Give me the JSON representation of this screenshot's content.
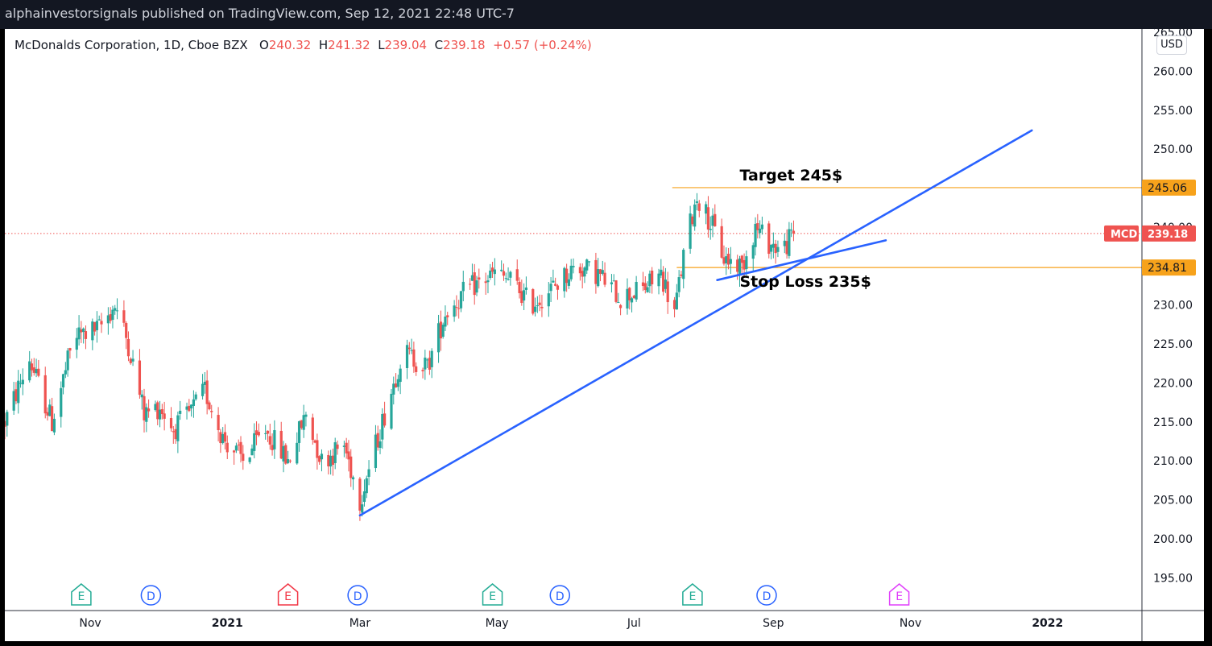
{
  "header": {
    "text": "alphainvestorsignals published on TradingView.com, Sep 12, 2021 22:48 UTC-7"
  },
  "legend": {
    "symbol": "McDonalds Corporation, 1D, Cboe BZX",
    "open_label": "O",
    "open": "240.32",
    "high_label": "H",
    "high": "241.32",
    "low_label": "L",
    "low": "239.04",
    "close_label": "C",
    "close": "239.18",
    "change": "+0.57 (+0.24%)"
  },
  "currency": "USD",
  "colors": {
    "up": "#26a69a",
    "down": "#ef5350",
    "trendline": "#2962ff",
    "level": "#f7a21b",
    "price_line": "#ef5350",
    "earnings": "#22ab94",
    "earnings_red": "#f23645",
    "earnings_future": "#e040fb",
    "dividend": "#2962ff"
  },
  "chart_data": {
    "type": "candlestick",
    "symbol": "MCD",
    "last_price": 239.18,
    "ylim": [
      191,
      265
    ],
    "y_ticks": [
      "195.00",
      "200.00",
      "205.00",
      "210.00",
      "215.00",
      "220.00",
      "225.00",
      "230.00",
      "235.00",
      "240.00",
      "245.00",
      "250.00",
      "255.00",
      "260.00",
      "265.00"
    ],
    "x_ticks": [
      {
        "label": "Nov",
        "date": "2020-11-01",
        "bold": false
      },
      {
        "label": "2021",
        "date": "2021-01-01",
        "bold": true
      },
      {
        "label": "Mar",
        "date": "2021-03-01",
        "bold": false
      },
      {
        "label": "May",
        "date": "2021-05-01",
        "bold": false
      },
      {
        "label": "Jul",
        "date": "2021-07-01",
        "bold": false
      },
      {
        "label": "Sep",
        "date": "2021-09-01",
        "bold": false
      },
      {
        "label": "Nov",
        "date": "2021-11-01",
        "bold": false
      },
      {
        "label": "2022",
        "date": "2022-01-01",
        "bold": true
      }
    ],
    "x_range": [
      "2020-09-24",
      "2022-02-12"
    ],
    "anchors": [
      [
        "2020-09-24",
        215
      ],
      [
        "2020-10-05",
        223
      ],
      [
        "2020-10-15",
        215
      ],
      [
        "2020-10-25",
        226
      ],
      [
        "2020-11-05",
        227
      ],
      [
        "2020-11-12",
        230
      ],
      [
        "2020-11-18",
        225
      ],
      [
        "2020-11-25",
        216
      ],
      [
        "2020-12-02",
        217
      ],
      [
        "2020-12-08",
        214
      ],
      [
        "2020-12-15",
        216
      ],
      [
        "2020-12-22",
        219
      ],
      [
        "2020-12-30",
        213
      ],
      [
        "2021-01-08",
        210
      ],
      [
        "2021-01-18",
        214
      ],
      [
        "2021-01-28",
        210
      ],
      [
        "2021-02-05",
        216
      ],
      [
        "2021-02-12",
        210
      ],
      [
        "2021-02-22",
        212
      ],
      [
        "2021-03-01",
        205
      ],
      [
        "2021-03-10",
        214
      ],
      [
        "2021-03-20",
        224
      ],
      [
        "2021-03-31",
        222
      ],
      [
        "2021-04-08",
        229
      ],
      [
        "2021-04-18",
        232
      ],
      [
        "2021-04-30",
        234
      ],
      [
        "2021-05-08",
        233
      ],
      [
        "2021-05-16",
        230
      ],
      [
        "2021-05-25",
        232
      ],
      [
        "2021-06-05",
        235
      ],
      [
        "2021-06-15",
        234
      ],
      [
        "2021-06-25",
        231
      ],
      [
        "2021-07-05",
        232
      ],
      [
        "2021-07-13",
        234
      ],
      [
        "2021-07-19",
        229
      ],
      [
        "2021-07-24",
        238
      ],
      [
        "2021-07-29",
        244
      ],
      [
        "2021-08-05",
        240
      ],
      [
        "2021-08-10",
        236
      ],
      [
        "2021-08-18",
        235
      ],
      [
        "2021-08-24",
        240
      ],
      [
        "2021-08-30",
        238
      ],
      [
        "2021-09-05",
        237
      ],
      [
        "2021-09-10",
        239.18
      ]
    ],
    "annotations": [
      {
        "text": "Target 245$",
        "price": 245.06
      },
      {
        "text": "Stop Loss 235$",
        "price": 234.81
      }
    ],
    "levels": [
      {
        "price": 245.06,
        "label": "245.06",
        "start": "2021-07-18"
      },
      {
        "price": 234.81,
        "label": "234.81",
        "start": "2021-07-20"
      }
    ],
    "price_tag": {
      "symbol": "MCD",
      "label": "239.18"
    },
    "trendlines": [
      {
        "from": [
          "2021-03-01",
          203
        ],
        "to": [
          "2021-12-25",
          252.4
        ]
      },
      {
        "from": [
          "2021-08-07",
          233.2
        ],
        "to": [
          "2021-10-21",
          238.3
        ]
      }
    ],
    "events": [
      {
        "letter": "E",
        "date": "2020-10-28",
        "kind": "earnings"
      },
      {
        "letter": "D",
        "date": "2020-11-28",
        "kind": "dividend"
      },
      {
        "letter": "E",
        "date": "2021-01-28",
        "kind": "earnings_red"
      },
      {
        "letter": "D",
        "date": "2021-02-28",
        "kind": "dividend"
      },
      {
        "letter": "E",
        "date": "2021-04-29",
        "kind": "earnings"
      },
      {
        "letter": "D",
        "date": "2021-05-29",
        "kind": "dividend"
      },
      {
        "letter": "E",
        "date": "2021-07-27",
        "kind": "earnings"
      },
      {
        "letter": "D",
        "date": "2021-08-29",
        "kind": "dividend"
      },
      {
        "letter": "E",
        "date": "2021-10-27",
        "kind": "earnings_future"
      }
    ]
  }
}
